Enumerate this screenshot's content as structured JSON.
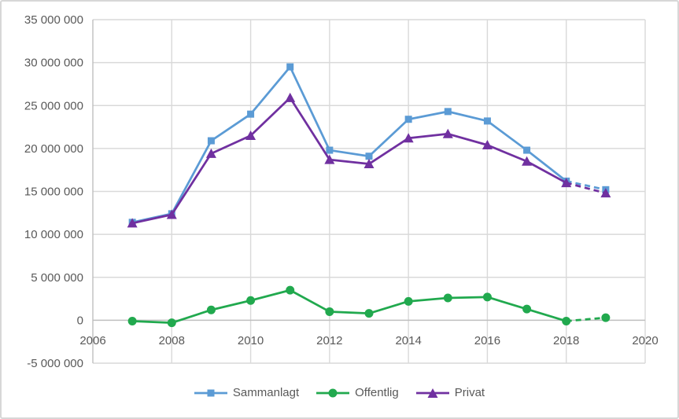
{
  "window": {
    "background": "#ffffff",
    "border_color": "#d7d7d7"
  },
  "chart_data": {
    "type": "line",
    "title": "",
    "xlabel": "",
    "ylabel": "",
    "x": [
      2007,
      2008,
      2009,
      2010,
      2011,
      2012,
      2013,
      2014,
      2015,
      2016,
      2017,
      2018,
      2019
    ],
    "series": [
      {
        "name": "Sammanlagt",
        "color": "#5B9BD5",
        "marker": "square",
        "values": [
          11400000,
          12400000,
          20900000,
          24000000,
          29500000,
          19800000,
          19100000,
          23400000,
          24300000,
          23200000,
          19800000,
          16200000,
          15200000
        ]
      },
      {
        "name": "Offentlig",
        "color": "#21A94E",
        "marker": "circle",
        "values": [
          -100000,
          -300000,
          1200000,
          2300000,
          3500000,
          1000000,
          800000,
          2200000,
          2600000,
          2700000,
          1300000,
          -100000,
          300000
        ]
      },
      {
        "name": "Privat",
        "color": "#7030A0",
        "marker": "triangle",
        "values": [
          11300000,
          12300000,
          19400000,
          21500000,
          25900000,
          18700000,
          18200000,
          21200000,
          21700000,
          20400000,
          18500000,
          16000000,
          14800000
        ]
      }
    ],
    "dashed_last_segment": true,
    "xlim": [
      2006,
      2020
    ],
    "ylim": [
      -5000000,
      35000000
    ],
    "x_ticks": [
      2006,
      2008,
      2010,
      2012,
      2014,
      2016,
      2018,
      2020
    ],
    "x_tick_labels": [
      "2006",
      "2008",
      "2010",
      "2012",
      "2014",
      "2016",
      "2018",
      "2020"
    ],
    "y_ticks": [
      35000000,
      30000000,
      25000000,
      20000000,
      15000000,
      10000000,
      5000000,
      0,
      -5000000
    ],
    "y_tick_labels": [
      "35 000 000",
      "30 000 000",
      "25 000 000",
      "20 000 000",
      "15 000 000",
      "10 000 000",
      "5 000 000",
      "0",
      "-5 000 000"
    ],
    "grid": true,
    "gridline_color": "#D9D9D9",
    "axis_color": "#BFBFBF",
    "text_color": "#595959",
    "legend_position": "bottom"
  },
  "legend": {
    "items": [
      {
        "label": "Sammanlagt"
      },
      {
        "label": "Offentlig"
      },
      {
        "label": "Privat"
      }
    ]
  }
}
